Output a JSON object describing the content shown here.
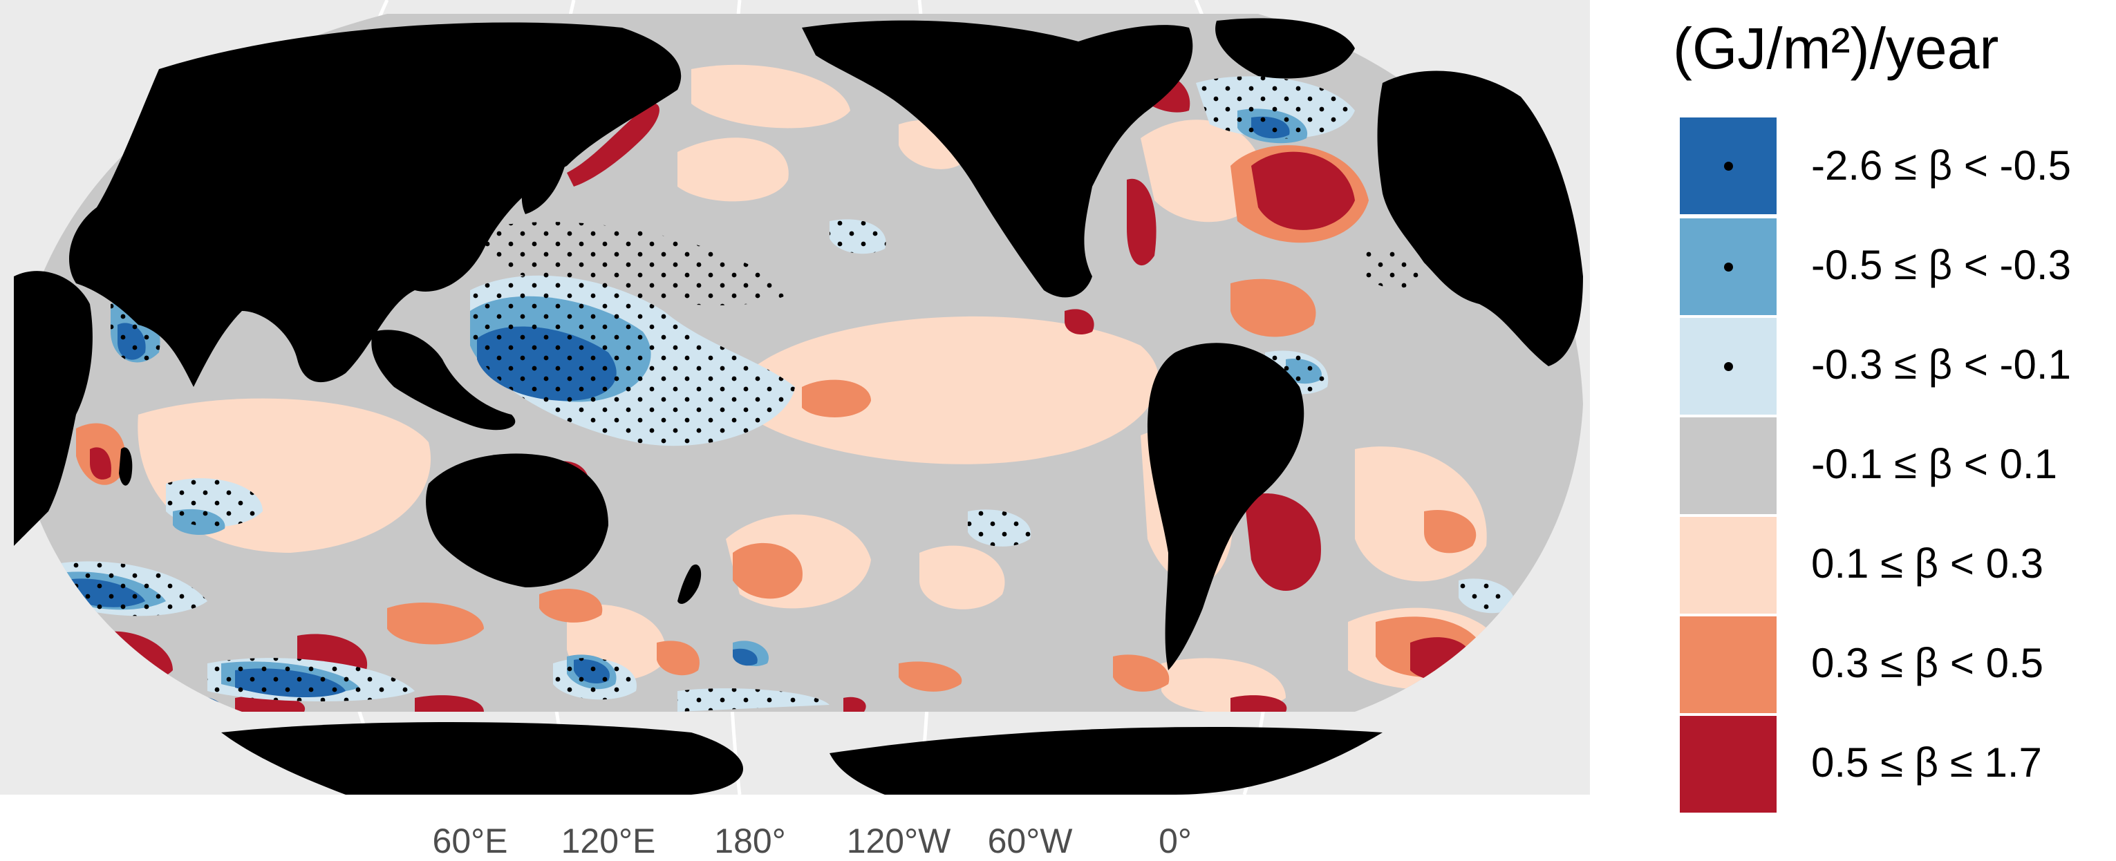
{
  "legend": {
    "title": "(GJ/m²)/year",
    "bins": [
      {
        "label": "-2.6 ≤ β < -0.5",
        "color": "#2166ac",
        "stippled": true
      },
      {
        "label": "-0.5 ≤ β < -0.3",
        "color": "#67a9cf",
        "stippled": true
      },
      {
        "label": "-0.3 ≤ β < -0.1",
        "color": "#d1e5f0",
        "stippled": true
      },
      {
        "label": "-0.1 ≤ β < 0.1",
        "color": "#c8c8c8",
        "stippled": false
      },
      {
        "label": "0.1 ≤ β < 0.3",
        "color": "#fddbc7",
        "stippled": false
      },
      {
        "label": "0.3 ≤ β < 0.5",
        "color": "#ef8a62",
        "stippled": false
      },
      {
        "label": "0.5 ≤ β ≤ 1.7",
        "color": "#b2182b",
        "stippled": false
      }
    ]
  },
  "x_axis": {
    "ticks": [
      "60°E",
      "120°E",
      "180°",
      "120°W",
      "60°W",
      "0°"
    ]
  },
  "colors": {
    "panel_background": "#ebebeb",
    "land": "#000000",
    "graticule": "#ffffff",
    "ocean_default": "#c8c8c8"
  }
}
